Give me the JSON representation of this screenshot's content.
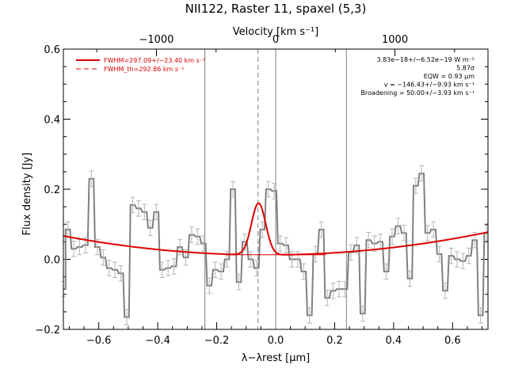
{
  "chart_data": {
    "type": "line",
    "title": "NII122, Raster 11, spaxel (5,3)",
    "xlabel": "λ−λrest [μm]",
    "ylabel": "Flux density [Jy]",
    "top_xlabel": "Velocity [km s⁻¹]",
    "xlim": [
      -0.72,
      0.72
    ],
    "ylim": [
      -0.2,
      0.6
    ],
    "top_xlim": [
      -1780,
      1780
    ],
    "xticks": [
      {
        "v": -0.6,
        "label": "−0.6"
      },
      {
        "v": -0.4,
        "label": "−0.4"
      },
      {
        "v": -0.2,
        "label": "−0.2"
      },
      {
        "v": 0.0,
        "label": "0.0"
      },
      {
        "v": 0.2,
        "label": "0.2"
      },
      {
        "v": 0.4,
        "label": "0.4"
      },
      {
        "v": 0.6,
        "label": "0.6"
      }
    ],
    "yticks": [
      {
        "v": -0.2,
        "label": "−0.2"
      },
      {
        "v": 0.0,
        "label": "0.0"
      },
      {
        "v": 0.2,
        "label": "0.2"
      },
      {
        "v": 0.4,
        "label": "0.4"
      },
      {
        "v": 0.6,
        "label": "0.6"
      }
    ],
    "top_xticks": [
      {
        "v": -1000,
        "label": "−1000"
      },
      {
        "v": 0,
        "label": "0"
      },
      {
        "v": 1000,
        "label": "1000"
      }
    ],
    "legend": {
      "placement": "top-left",
      "entries": [
        {
          "label": "FWHM=297.09+/−23.40 km s⁻¹",
          "style": "solid",
          "color": "#dd0000"
        },
        {
          "label": "FWHM_th=292.86 km s⁻¹",
          "style": "dashed",
          "color": "#dd0000"
        }
      ]
    },
    "annotations": {
      "placement": "top-right",
      "lines": [
        "3.83e−18+/−6.52e−19 W m⁻²",
        "5.87σ",
        "EQW = 0.93 μm",
        "v = −146.43+/−9.93 km s⁻¹",
        "Broadening = 50.00+/−3.93 km s⁻¹"
      ]
    },
    "vertical_lines": [
      {
        "x": -0.24,
        "style": "solid"
      },
      {
        "x": 0.0,
        "style": "solid"
      },
      {
        "x": 0.24,
        "style": "solid"
      },
      {
        "x": -0.06,
        "style": "dashed"
      }
    ],
    "series": [
      {
        "style": "step",
        "color": "#808080",
        "x": [
          -0.72,
          -0.705,
          -0.685,
          -0.665,
          -0.645,
          -0.625,
          -0.605,
          -0.585,
          -0.565,
          -0.545,
          -0.525,
          -0.505,
          -0.485,
          -0.465,
          -0.445,
          -0.425,
          -0.405,
          -0.385,
          -0.365,
          -0.345,
          -0.325,
          -0.305,
          -0.285,
          -0.265,
          -0.245,
          -0.225,
          -0.205,
          -0.185,
          -0.165,
          -0.145,
          -0.125,
          -0.105,
          -0.085,
          -0.065,
          -0.045,
          -0.025,
          -0.005,
          0.015,
          0.035,
          0.055,
          0.075,
          0.095,
          0.115,
          0.135,
          0.155,
          0.175,
          0.195,
          0.215,
          0.235,
          0.255,
          0.275,
          0.295,
          0.315,
          0.335,
          0.355,
          0.375,
          0.395,
          0.415,
          0.435,
          0.455,
          0.475,
          0.495,
          0.515,
          0.535,
          0.555,
          0.575,
          0.595,
          0.615,
          0.635,
          0.655,
          0.675,
          0.695,
          0.715
        ],
        "y": [
          -0.085,
          0.085,
          0.03,
          0.035,
          0.04,
          0.23,
          0.035,
          0.005,
          -0.025,
          -0.03,
          -0.04,
          -0.165,
          0.155,
          0.145,
          0.135,
          0.09,
          0.135,
          -0.03,
          -0.025,
          -0.02,
          0.035,
          0.005,
          0.07,
          0.065,
          0.045,
          -0.075,
          -0.03,
          -0.035,
          0.0,
          0.2,
          -0.065,
          0.05,
          0.0,
          -0.025,
          0.085,
          0.2,
          0.195,
          0.045,
          0.04,
          0.0,
          0.0,
          -0.035,
          -0.16,
          0.015,
          0.085,
          -0.11,
          -0.09,
          -0.085,
          -0.085,
          0.02,
          0.04,
          -0.155,
          0.055,
          0.045,
          0.05,
          -0.035,
          0.065,
          0.095,
          0.075,
          -0.055,
          0.21,
          0.245,
          0.075,
          0.085,
          0.015,
          -0.09,
          0.01,
          0.0,
          -0.005,
          0.01,
          0.055,
          -0.16,
          0.075
        ],
        "err": 0.022
      },
      {
        "style": "fit",
        "color": "#dd0000",
        "baseline_coeffs": [
          0.0125,
          0.0075,
          0.115
        ],
        "gauss_amp": 0.148,
        "gauss_center": -0.058,
        "gauss_sigma": 0.024,
        "x_range": [
          -0.72,
          0.72
        ]
      },
      {
        "style": "continuum",
        "color": "#dd0000",
        "x": [
          -0.17,
          0.17
        ],
        "y": [
          0.013,
          0.013
        ]
      }
    ]
  }
}
